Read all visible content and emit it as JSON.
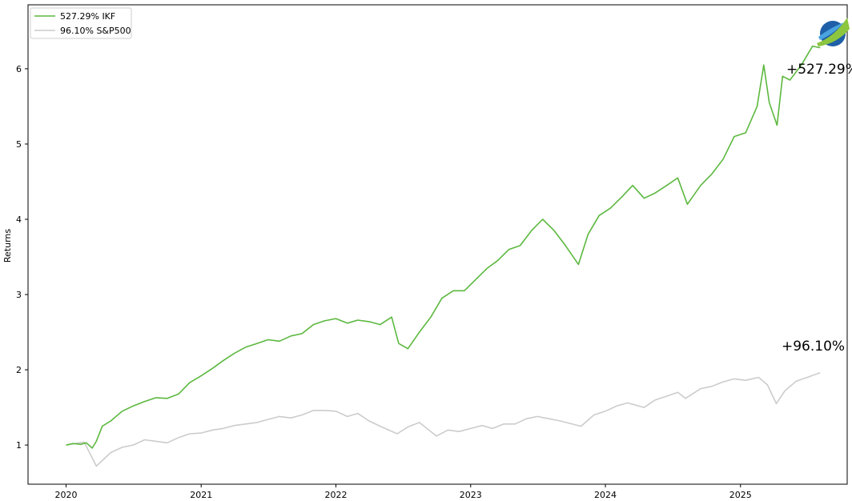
{
  "chart_data": {
    "type": "line",
    "title": "",
    "xlabel": "",
    "ylabel": "Returns",
    "xlim": [
      "2019-09-20",
      "2025-10-17"
    ],
    "ylim": [
      0.48,
      6.85
    ],
    "x_ticks": [
      "2020",
      "2021",
      "2022",
      "2023",
      "2024",
      "2025"
    ],
    "y_ticks": [
      "1",
      "2",
      "3",
      "4",
      "5",
      "6"
    ],
    "grid": false,
    "legend_position": "top-left",
    "annotations": [
      "+527.29%",
      "+96.10%"
    ],
    "colors": {
      "IKF": "#5cb83f",
      "S&P500": "#cccccc"
    },
    "series": [
      {
        "name": "527.29% IKF",
        "color": "#5cb83f",
        "points": [
          [
            "2020-01-01",
            1.0
          ],
          [
            "2020-01-20",
            1.02
          ],
          [
            "2020-02-10",
            1.01
          ],
          [
            "2020-02-25",
            1.03
          ],
          [
            "2020-03-12",
            0.96
          ],
          [
            "2020-03-23",
            1.05
          ],
          [
            "2020-04-08",
            1.25
          ],
          [
            "2020-05-01",
            1.32
          ],
          [
            "2020-06-01",
            1.45
          ],
          [
            "2020-07-01",
            1.52
          ],
          [
            "2020-08-01",
            1.58
          ],
          [
            "2020-09-01",
            1.63
          ],
          [
            "2020-10-01",
            1.62
          ],
          [
            "2020-11-01",
            1.68
          ],
          [
            "2020-12-01",
            1.83
          ],
          [
            "2021-01-01",
            1.92
          ],
          [
            "2021-02-01",
            2.02
          ],
          [
            "2021-03-01",
            2.12
          ],
          [
            "2021-04-01",
            2.22
          ],
          [
            "2021-05-01",
            2.3
          ],
          [
            "2021-06-01",
            2.35
          ],
          [
            "2021-07-01",
            2.4
          ],
          [
            "2021-08-01",
            2.38
          ],
          [
            "2021-09-01",
            2.45
          ],
          [
            "2021-10-01",
            2.48
          ],
          [
            "2021-11-01",
            2.6
          ],
          [
            "2021-12-01",
            2.65
          ],
          [
            "2022-01-01",
            2.68
          ],
          [
            "2022-02-01",
            2.62
          ],
          [
            "2022-03-01",
            2.66
          ],
          [
            "2022-04-01",
            2.64
          ],
          [
            "2022-05-01",
            2.6
          ],
          [
            "2022-06-01",
            2.7
          ],
          [
            "2022-06-20",
            2.35
          ],
          [
            "2022-07-15",
            2.28
          ],
          [
            "2022-08-15",
            2.5
          ],
          [
            "2022-09-15",
            2.7
          ],
          [
            "2022-10-15",
            2.95
          ],
          [
            "2022-11-15",
            3.05
          ],
          [
            "2022-12-15",
            3.05
          ],
          [
            "2023-01-15",
            3.2
          ],
          [
            "2023-02-15",
            3.35
          ],
          [
            "2023-03-15",
            3.45
          ],
          [
            "2023-04-15",
            3.6
          ],
          [
            "2023-05-15",
            3.65
          ],
          [
            "2023-06-15",
            3.85
          ],
          [
            "2023-07-15",
            4.0
          ],
          [
            "2023-08-15",
            3.85
          ],
          [
            "2023-09-15",
            3.65
          ],
          [
            "2023-10-20",
            3.4
          ],
          [
            "2023-11-15",
            3.8
          ],
          [
            "2023-12-15",
            4.05
          ],
          [
            "2024-01-15",
            4.15
          ],
          [
            "2024-02-15",
            4.3
          ],
          [
            "2024-03-15",
            4.45
          ],
          [
            "2024-04-15",
            4.28
          ],
          [
            "2024-05-15",
            4.35
          ],
          [
            "2024-06-15",
            4.45
          ],
          [
            "2024-07-15",
            4.55
          ],
          [
            "2024-08-10",
            4.2
          ],
          [
            "2024-09-15",
            4.45
          ],
          [
            "2024-10-15",
            4.6
          ],
          [
            "2024-11-15",
            4.8
          ],
          [
            "2024-12-15",
            5.1
          ],
          [
            "2025-01-15",
            5.15
          ],
          [
            "2025-02-15",
            5.5
          ],
          [
            "2025-03-05",
            6.05
          ],
          [
            "2025-03-20",
            5.55
          ],
          [
            "2025-04-10",
            5.25
          ],
          [
            "2025-04-25",
            5.9
          ],
          [
            "2025-05-15",
            5.85
          ],
          [
            "2025-06-15",
            6.05
          ],
          [
            "2025-07-15",
            6.3
          ],
          [
            "2025-08-05",
            6.28
          ]
        ]
      },
      {
        "name": "96.10% S&P500",
        "color": "#cccccc",
        "points": [
          [
            "2020-01-01",
            1.0
          ],
          [
            "2020-02-19",
            1.04
          ],
          [
            "2020-03-23",
            0.72
          ],
          [
            "2020-05-01",
            0.9
          ],
          [
            "2020-06-01",
            0.97
          ],
          [
            "2020-07-01",
            1.0
          ],
          [
            "2020-08-01",
            1.07
          ],
          [
            "2020-09-01",
            1.05
          ],
          [
            "2020-10-01",
            1.03
          ],
          [
            "2020-11-01",
            1.1
          ],
          [
            "2020-12-01",
            1.15
          ],
          [
            "2021-01-01",
            1.16
          ],
          [
            "2021-02-01",
            1.2
          ],
          [
            "2021-03-01",
            1.22
          ],
          [
            "2021-04-01",
            1.26
          ],
          [
            "2021-05-01",
            1.28
          ],
          [
            "2021-06-01",
            1.3
          ],
          [
            "2021-07-01",
            1.34
          ],
          [
            "2021-08-01",
            1.38
          ],
          [
            "2021-09-01",
            1.36
          ],
          [
            "2021-10-01",
            1.4
          ],
          [
            "2021-11-01",
            1.46
          ],
          [
            "2021-12-01",
            1.46
          ],
          [
            "2022-01-01",
            1.45
          ],
          [
            "2022-02-01",
            1.38
          ],
          [
            "2022-03-01",
            1.42
          ],
          [
            "2022-04-01",
            1.32
          ],
          [
            "2022-05-01",
            1.25
          ],
          [
            "2022-06-16",
            1.15
          ],
          [
            "2022-07-15",
            1.24
          ],
          [
            "2022-08-15",
            1.3
          ],
          [
            "2022-09-30",
            1.12
          ],
          [
            "2022-11-01",
            1.2
          ],
          [
            "2022-12-01",
            1.18
          ],
          [
            "2023-01-01",
            1.22
          ],
          [
            "2023-02-01",
            1.26
          ],
          [
            "2023-03-01",
            1.22
          ],
          [
            "2023-04-01",
            1.28
          ],
          [
            "2023-05-01",
            1.28
          ],
          [
            "2023-06-01",
            1.35
          ],
          [
            "2023-07-01",
            1.38
          ],
          [
            "2023-08-01",
            1.35
          ],
          [
            "2023-09-01",
            1.32
          ],
          [
            "2023-10-27",
            1.25
          ],
          [
            "2023-12-01",
            1.4
          ],
          [
            "2024-01-01",
            1.45
          ],
          [
            "2024-02-01",
            1.52
          ],
          [
            "2024-03-01",
            1.56
          ],
          [
            "2024-04-15",
            1.5
          ],
          [
            "2024-05-15",
            1.6
          ],
          [
            "2024-06-15",
            1.65
          ],
          [
            "2024-07-15",
            1.7
          ],
          [
            "2024-08-05",
            1.62
          ],
          [
            "2024-09-15",
            1.75
          ],
          [
            "2024-10-15",
            1.78
          ],
          [
            "2024-11-15",
            1.84
          ],
          [
            "2024-12-15",
            1.88
          ],
          [
            "2025-01-15",
            1.86
          ],
          [
            "2025-02-19",
            1.9
          ],
          [
            "2025-03-15",
            1.8
          ],
          [
            "2025-04-08",
            1.55
          ],
          [
            "2025-05-01",
            1.72
          ],
          [
            "2025-06-01",
            1.85
          ],
          [
            "2025-07-01",
            1.9
          ],
          [
            "2025-08-05",
            1.961
          ]
        ]
      }
    ]
  }
}
